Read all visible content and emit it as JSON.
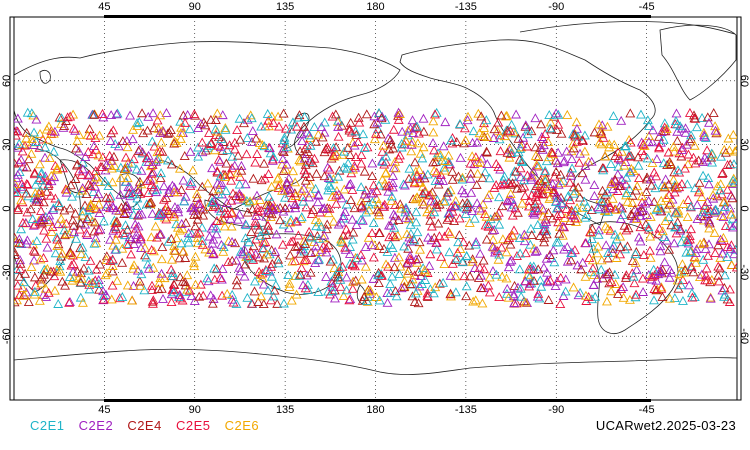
{
  "map": {
    "lon_ticks": [
      "45",
      "90",
      "135",
      "180",
      "-135",
      "-90",
      "-45"
    ],
    "lat_ticks": [
      "60",
      "30",
      "0",
      "-30",
      "-60"
    ],
    "marker": "triangle-outline",
    "coverage": {
      "lat_min": -45,
      "lat_max": 45,
      "description_shown": false
    }
  },
  "legend": [
    {
      "label": "C2E1",
      "color": "#1fb4c8"
    },
    {
      "label": "C2E2",
      "color": "#a020c0"
    },
    {
      "label": "C2E4",
      "color": "#b01818"
    },
    {
      "label": "C2E5",
      "color": "#e8103c"
    },
    {
      "label": "C2E6",
      "color": "#f2a800"
    }
  ],
  "caption": "UCARwet2.2025-03-23"
}
